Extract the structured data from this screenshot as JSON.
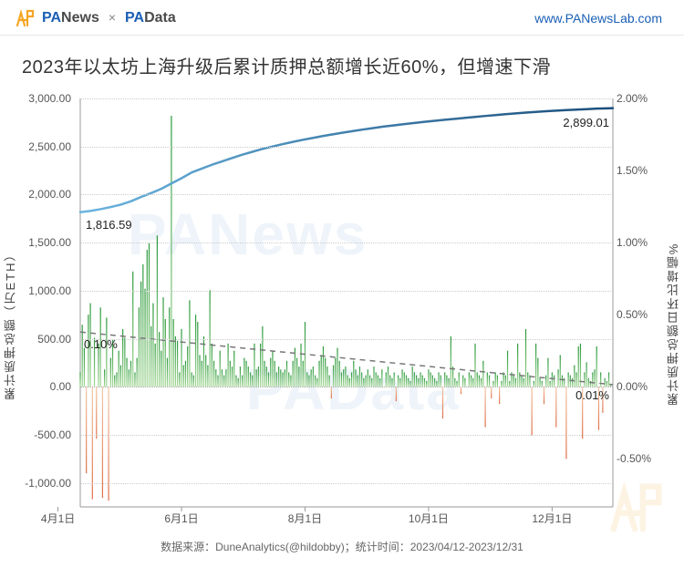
{
  "header": {
    "brand1_p": "PA",
    "brand1_rest": "News",
    "sep": "×",
    "brand2_p": "PA",
    "brand2_rest": "Data",
    "url": "www.PANewsLab.com"
  },
  "title": "2023年以太坊上海升级后累计质押总额增长近60%，但增速下滑",
  "footer": "数据来源：DuneAnalytics(@hildobby)；统计时间：2023/04/12-2023/12/31",
  "watermark1": "PANews",
  "watermark2": "PAData",
  "chart": {
    "background_color": "#ffffff",
    "grid_color": "#cccccc",
    "axis_color": "#999999",
    "title_fontsize": 20,
    "tick_fontsize": 12,
    "y_left": {
      "label": "累计质押总额（万ETH）",
      "min": -1250,
      "max": 3000,
      "ticks": [
        {
          "v": -1000,
          "t": "-1,000.00"
        },
        {
          "v": -500,
          "t": "-500.00"
        },
        {
          "v": 0,
          "t": "0.00"
        },
        {
          "v": 500,
          "t": "500.00"
        },
        {
          "v": 1000,
          "t": "1,000.00"
        },
        {
          "v": 1500,
          "t": "1,500.00"
        },
        {
          "v": 2000,
          "t": "2,000.00"
        },
        {
          "v": 2500,
          "t": "2,500.00"
        },
        {
          "v": 3000,
          "t": "3,000.00"
        }
      ]
    },
    "y_right": {
      "label": "累计质押总额日环比增幅%",
      "min": -0.833,
      "max": 2.0,
      "ticks": [
        {
          "v": -0.5,
          "t": "-0.50%"
        },
        {
          "v": 0.0,
          "t": "0.00%"
        },
        {
          "v": 0.5,
          "t": "0.50%"
        },
        {
          "v": 1.0,
          "t": "1.00%"
        },
        {
          "v": 1.5,
          "t": "1.50%"
        },
        {
          "v": 2.0,
          "t": "2.00%"
        }
      ]
    },
    "x": {
      "min": 0,
      "max": 263,
      "ticks": [
        {
          "v": -11,
          "t": "4月1日"
        },
        {
          "v": 50,
          "t": "6月1日"
        },
        {
          "v": 111,
          "t": "8月1日"
        },
        {
          "v": 172,
          "t": "10月1日"
        },
        {
          "v": 233,
          "t": "12月1日"
        }
      ]
    },
    "line_total": {
      "color_start": "#6bb5e0",
      "color_end": "#1a4d7a",
      "width": 2.5,
      "start_label": "1,816.59",
      "end_label": "2,899.01",
      "data": [
        [
          0,
          1816.59
        ],
        [
          5,
          1830
        ],
        [
          10,
          1848
        ],
        [
          15,
          1870
        ],
        [
          20,
          1895
        ],
        [
          25,
          1930
        ],
        [
          30,
          1975
        ],
        [
          35,
          2015
        ],
        [
          40,
          2060
        ],
        [
          45,
          2115
        ],
        [
          50,
          2170
        ],
        [
          55,
          2230
        ],
        [
          60,
          2270
        ],
        [
          65,
          2310
        ],
        [
          70,
          2345
        ],
        [
          75,
          2380
        ],
        [
          80,
          2415
        ],
        [
          85,
          2445
        ],
        [
          90,
          2475
        ],
        [
          95,
          2500
        ],
        [
          100,
          2525
        ],
        [
          105,
          2548
        ],
        [
          110,
          2570
        ],
        [
          115,
          2590
        ],
        [
          120,
          2610
        ],
        [
          125,
          2628
        ],
        [
          130,
          2645
        ],
        [
          135,
          2662
        ],
        [
          140,
          2678
        ],
        [
          145,
          2693
        ],
        [
          150,
          2708
        ],
        [
          155,
          2720
        ],
        [
          160,
          2733
        ],
        [
          165,
          2745
        ],
        [
          170,
          2757
        ],
        [
          175,
          2768
        ],
        [
          180,
          2778
        ],
        [
          185,
          2788
        ],
        [
          190,
          2798
        ],
        [
          195,
          2808
        ],
        [
          200,
          2818
        ],
        [
          205,
          2827
        ],
        [
          210,
          2836
        ],
        [
          215,
          2845
        ],
        [
          220,
          2853
        ],
        [
          225,
          2860
        ],
        [
          230,
          2867
        ],
        [
          235,
          2873
        ],
        [
          240,
          2879
        ],
        [
          245,
          2884
        ],
        [
          250,
          2889
        ],
        [
          255,
          2894
        ],
        [
          260,
          2897
        ],
        [
          263,
          2899.01
        ]
      ]
    },
    "bars_growth": {
      "pos_top_color": "#2e9b3f",
      "pos_bot_color": "#a8d99a",
      "neg_top_color": "#f2c9a8",
      "neg_bot_color": "#e0704a",
      "width_ratio": 0.55,
      "data": [
        0.1,
        0.43,
        0.27,
        -0.6,
        0.5,
        0.58,
        -0.78,
        0.34,
        -0.36,
        0.3,
        0.55,
        -0.77,
        0.12,
        0.48,
        -0.79,
        0.2,
        0.33,
        0.08,
        0.1,
        0.25,
        0.15,
        0.4,
        0.34,
        0.2,
        0.12,
        0.18,
        0.8,
        0.1,
        0.2,
        0.55,
        0.73,
        0.85,
        0.68,
        0.95,
        1.0,
        0.42,
        0.58,
        0.3,
        1.05,
        0.38,
        0.25,
        0.62,
        0.47,
        0.2,
        0.55,
        1.88,
        0.47,
        0.35,
        0.32,
        0.1,
        0.4,
        0.15,
        0.18,
        0.28,
        0.6,
        0.1,
        0.08,
        0.5,
        0.45,
        0.22,
        0.18,
        0.35,
        0.22,
        0.15,
        0.67,
        0.3,
        0.18,
        0.12,
        0.08,
        0.25,
        0.12,
        0.08,
        0.12,
        0.3,
        0.18,
        0.14,
        0.25,
        0.08,
        0.06,
        0.14,
        0.08,
        0.2,
        0.18,
        0.14,
        0.1,
        0.08,
        0.3,
        0.12,
        0.14,
        0.3,
        0.42,
        0.18,
        0.14,
        0.1,
        0.2,
        0.25,
        0.18,
        0.1,
        0.14,
        0.12,
        0.1,
        0.12,
        0.18,
        0.1,
        0.08,
        0.18,
        0.27,
        0.2,
        0.14,
        0.3,
        0.18,
        0.45,
        0.1,
        0.08,
        0.12,
        0.14,
        0.08,
        0.06,
        0.18,
        0.22,
        0.28,
        0.2,
        0.14,
        0.08,
        -0.08,
        0.15,
        0.2,
        0.27,
        0.18,
        0.1,
        0.12,
        0.14,
        0.08,
        0.06,
        0.1,
        0.18,
        0.12,
        0.08,
        0.14,
        0.1,
        0.06,
        0.08,
        0.12,
        0.08,
        0.06,
        0.14,
        0.1,
        0.08,
        0.06,
        0.12,
        0.0,
        0.1,
        0.14,
        0.08,
        0.06,
        0.1,
        -0.1,
        0.08,
        0.06,
        0.12,
        0.1,
        0.08,
        0.06,
        0.04,
        0.14,
        0.1,
        0.08,
        0.06,
        0.1,
        0.08,
        0.06,
        0.04,
        0.12,
        0.1,
        0.08,
        0.06,
        0.04,
        0.1,
        0.08,
        -0.22,
        0.1,
        0.08,
        0.06,
        0.35,
        0.14,
        0.06,
        0.04,
        0.1,
        -0.05,
        0.08,
        0.06,
        0.0,
        0.1,
        0.08,
        0.06,
        0.3,
        0.1,
        0.08,
        0.06,
        0.18,
        -0.28,
        0.1,
        0.08,
        -0.08,
        0.04,
        0.1,
        0.08,
        -0.12,
        0.04,
        0.1,
        0.08,
        0.25,
        0.04,
        0.1,
        0.08,
        0.06,
        0.3,
        0.1,
        0.08,
        0.06,
        0.4,
        0.1,
        0.08,
        -0.34,
        0.04,
        0.3,
        0.2,
        0.06,
        0.04,
        -0.12,
        0.08,
        0.2,
        0.04,
        0.1,
        0.08,
        -0.28,
        0.12,
        0.22,
        0.08,
        0.06,
        -0.5,
        0.1,
        0.08,
        0.06,
        0.15,
        0.1,
        0.28,
        0.3,
        -0.36,
        0.1,
        0.17,
        0.06,
        0.04,
        0.1,
        0.12,
        0.28,
        -0.3,
        0.1,
        -0.18,
        0.06,
        0.04,
        0.1,
        0.01
      ]
    },
    "trend_dash": {
      "color": "#777777",
      "dash": "6,5",
      "width": 1.5,
      "start_label": "0.10%",
      "end_label": "0.01%",
      "start": [
        0,
        0.38
      ],
      "end": [
        263,
        0.015
      ]
    }
  }
}
